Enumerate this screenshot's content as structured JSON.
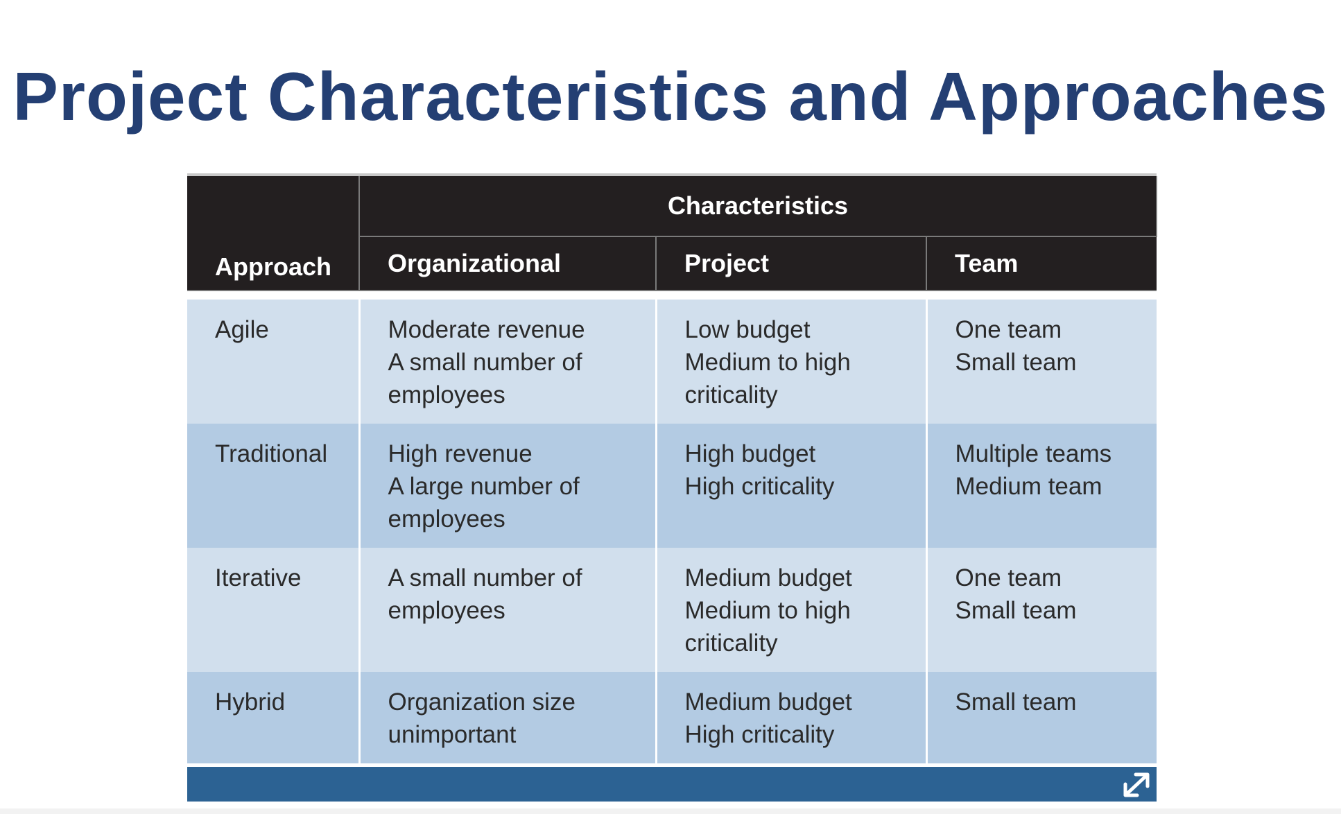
{
  "title": "Project Characteristics and Approaches",
  "table": {
    "group_header": "Characteristics",
    "columns": [
      "Approach",
      "Organizational",
      "Project",
      "Team"
    ],
    "rows": [
      {
        "approach": "Agile",
        "organizational": [
          "Moderate revenue",
          "A small number of",
          "employees"
        ],
        "project": [
          "Low budget",
          "Medium to high",
          "criticality"
        ],
        "team": [
          "One team",
          "Small team"
        ]
      },
      {
        "approach": "Traditional",
        "organizational": [
          "High revenue",
          "A large number of",
          "employees"
        ],
        "project": [
          "High budget",
          "High criticality"
        ],
        "team": [
          "Multiple teams",
          "Medium team"
        ]
      },
      {
        "approach": "Iterative",
        "organizational": [
          "A small number of",
          "employees"
        ],
        "project": [
          "Medium budget",
          "Medium to high",
          "criticality"
        ],
        "team": [
          "One team",
          "Small team"
        ]
      },
      {
        "approach": "Hybrid",
        "organizational": [
          "Organization size",
          "unimportant"
        ],
        "project": [
          "Medium budget",
          "High criticality"
        ],
        "team": [
          "Small team"
        ]
      }
    ]
  },
  "footer": {
    "icon": "expand-icon"
  },
  "colors": {
    "title": "#243f73",
    "header_bg": "#231f20",
    "row_light": "#d1dfed",
    "row_dark": "#b3cbe3",
    "footer_bar": "#2c6293"
  }
}
